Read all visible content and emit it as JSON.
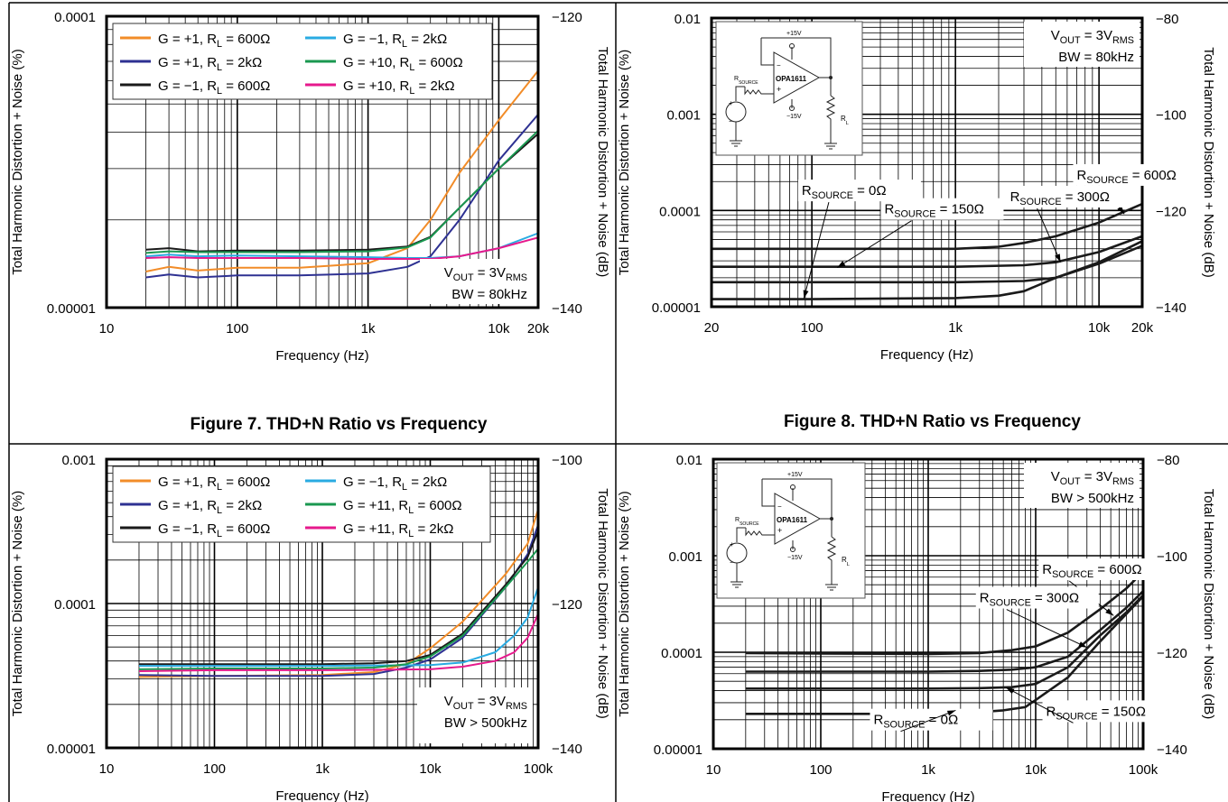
{
  "captions": {
    "fig7": "Figure 7. THD+N Ratio vs Frequency",
    "fig8": "Figure 8. THD+N Ratio vs Frequency"
  },
  "chart_data": [
    {
      "id": "fig7-80k",
      "type": "line",
      "xscale": "log",
      "yscale": "log",
      "xlabel": "Frequency (Hz)",
      "ylabel": "Total Harmonic Distortion + Noise (%)",
      "y2label": "Total Harmonic Distortion + Noise (dB)",
      "xlim": [
        10,
        20000
      ],
      "ylim": [
        1e-05,
        0.0001
      ],
      "y2lim": [
        -140,
        -120
      ],
      "xticks": [
        {
          "v": 10,
          "l": "10"
        },
        {
          "v": 100,
          "l": "100"
        },
        {
          "v": 1000,
          "l": "1k"
        },
        {
          "v": 10000,
          "l": "10k"
        },
        {
          "v": 20000,
          "l": "20k"
        }
      ],
      "yticks": [
        {
          "v": 1e-05,
          "l": "0.00001"
        },
        {
          "v": 0.0001,
          "l": "0.0001"
        }
      ],
      "y2ticks": [
        {
          "v": 1e-05,
          "l": "−140"
        },
        {
          "v": 0.0001,
          "l": "−120"
        }
      ],
      "legend": "top-left",
      "annotation": [
        "V|OUT| = 3V|RMS",
        "BW = 80kHz"
      ],
      "series": [
        {
          "name": "G = +1, R|L| = 600Ω",
          "color": "#f28c28",
          "x": [
            20,
            30,
            50,
            100,
            300,
            1000,
            2000,
            3000,
            5000,
            10000,
            20000
          ],
          "y": [
            1.33e-05,
            1.38e-05,
            1.34e-05,
            1.37e-05,
            1.37e-05,
            1.42e-05,
            1.6e-05,
            2e-05,
            2.9e-05,
            4.4e-05,
            6.5e-05
          ]
        },
        {
          "name": "G = +1, R|L| = 2kΩ",
          "color": "#2e3192",
          "x": [
            20,
            30,
            50,
            100,
            300,
            1000,
            2000,
            3000,
            5000,
            10000,
            20000
          ],
          "y": [
            1.27e-05,
            1.3e-05,
            1.27e-05,
            1.29e-05,
            1.29e-05,
            1.31e-05,
            1.38e-05,
            1.5e-05,
            2e-05,
            3.2e-05,
            4.6e-05
          ]
        },
        {
          "name": "G = −1, R|L| = 600Ω",
          "color": "#1a1a1a",
          "x": [
            20,
            30,
            50,
            100,
            300,
            1000,
            2000,
            3000,
            5000,
            10000,
            20000
          ],
          "y": [
            1.58e-05,
            1.6e-05,
            1.56e-05,
            1.57e-05,
            1.57e-05,
            1.58e-05,
            1.62e-05,
            1.75e-05,
            2.2e-05,
            3e-05,
            3.95e-05
          ]
        },
        {
          "name": "G = −1, R|L| = 2kΩ",
          "color": "#29abe2",
          "x": [
            20,
            30,
            50,
            100,
            300,
            1000,
            2000,
            3000,
            5000,
            10000,
            20000
          ],
          "y": [
            1.5e-05,
            1.52e-05,
            1.5e-05,
            1.51e-05,
            1.5e-05,
            1.49e-05,
            1.48e-05,
            1.48e-05,
            1.5e-05,
            1.6e-05,
            1.8e-05
          ]
        },
        {
          "name": "G = +10, R|L| = 600Ω",
          "color": "#1a9850",
          "x": [
            20,
            30,
            50,
            100,
            300,
            1000,
            2000,
            3000,
            5000,
            10000,
            20000
          ],
          "y": [
            1.54e-05,
            1.56e-05,
            1.55e-05,
            1.55e-05,
            1.55e-05,
            1.56e-05,
            1.61e-05,
            1.74e-05,
            2.2e-05,
            3e-05,
            4.05e-05
          ]
        },
        {
          "name": "G = +10, R|L| = 2kΩ",
          "color": "#e6198c",
          "x": [
            20,
            30,
            50,
            100,
            300,
            1000,
            2000,
            3000,
            5000,
            10000,
            20000
          ],
          "y": [
            1.48e-05,
            1.49e-05,
            1.48e-05,
            1.48e-05,
            1.48e-05,
            1.47e-05,
            1.47e-05,
            1.47e-05,
            1.5e-05,
            1.6e-05,
            1.74e-05
          ]
        }
      ]
    },
    {
      "id": "fig8-80k",
      "type": "line",
      "xscale": "log",
      "yscale": "log",
      "xlabel": "Frequency (Hz)",
      "ylabel": "Total Harmonic Distortion + Noise (%)",
      "y2label": "Total Harmonic Distortion + Noise (dB)",
      "xlim": [
        20,
        20000
      ],
      "ylim": [
        1e-05,
        0.01
      ],
      "y2lim": [
        -140,
        -80
      ],
      "xticks": [
        {
          "v": 20,
          "l": "20"
        },
        {
          "v": 100,
          "l": "100"
        },
        {
          "v": 1000,
          "l": "1k"
        },
        {
          "v": 10000,
          "l": "10k"
        },
        {
          "v": 20000,
          "l": "20k"
        }
      ],
      "yticks": [
        {
          "v": 1e-05,
          "l": "0.00001"
        },
        {
          "v": 0.0001,
          "l": "0.0001"
        },
        {
          "v": 0.001,
          "l": "0.001"
        },
        {
          "v": 0.01,
          "l": "0.01"
        }
      ],
      "y2ticks": [
        {
          "v": 1e-05,
          "l": "−140"
        },
        {
          "v": 0.0001,
          "l": "−120"
        },
        {
          "v": 0.001,
          "l": "−100"
        },
        {
          "v": 0.01,
          "l": "−80"
        }
      ],
      "annotation": [
        "V|OUT| = 3V|RMS",
        "BW = 80kHz"
      ],
      "series": [
        {
          "name": "R|SOURCE| = 600Ω",
          "color": "#1a1a1a",
          "x": [
            20,
            100,
            1000,
            2000,
            3000,
            5000,
            10000,
            20000
          ],
          "y": [
            4e-05,
            4e-05,
            4e-05,
            4.2e-05,
            4.6e-05,
            5.4e-05,
            7.5e-05,
            0.000117
          ]
        },
        {
          "name": "R|SOURCE| = 300Ω",
          "color": "#1a1a1a",
          "x": [
            20,
            100,
            1000,
            3000,
            5000,
            10000,
            20000
          ],
          "y": [
            2.6e-05,
            2.6e-05,
            2.6e-05,
            2.7e-05,
            2.9e-05,
            3.7e-05,
            5.4e-05
          ]
        },
        {
          "name": "R|SOURCE| = 150Ω",
          "color": "#1a1a1a",
          "x": [
            20,
            100,
            1000,
            3000,
            5000,
            10000,
            20000
          ],
          "y": [
            1.8e-05,
            1.8e-05,
            1.8e-05,
            1.85e-05,
            2e-05,
            2.9e-05,
            4.8e-05
          ]
        },
        {
          "name": "R|SOURCE| = 0Ω",
          "color": "#1a1a1a",
          "x": [
            20,
            100,
            1000,
            2000,
            3000,
            5000,
            10000,
            20000
          ],
          "y": [
            1.2e-05,
            1.2e-05,
            1.23e-05,
            1.3e-05,
            1.45e-05,
            2e-05,
            2.8e-05,
            4.3e-05
          ]
        }
      ],
      "labels": [
        {
          "text": "R|SOURCE| = 600Ω",
          "x": 7000,
          "y": 0.00021,
          "arrow": [
            15000,
            9.2e-05
          ]
        },
        {
          "text": "R|SOURCE| = 300Ω",
          "x": 2400,
          "y": 0.000125,
          "arrow": [
            5400,
            2.9e-05
          ]
        },
        {
          "text": "R|SOURCE| = 150Ω",
          "x": 320,
          "y": 9.3e-05,
          "arrow": [
            150,
            2.55e-05
          ]
        },
        {
          "text": "R|SOURCE| = 0Ω",
          "x": 85,
          "y": 0.000145,
          "arrow": [
            88,
            1.22e-05
          ]
        }
      ],
      "inset": {
        "opamp": "OPA1611",
        "vplus": "+15V",
        "vminus": "−15V",
        "rsource": "R|SOURCE",
        "rl": "R|L"
      }
    },
    {
      "id": "fig7-500k",
      "type": "line",
      "xscale": "log",
      "yscale": "log",
      "xlabel": "Frequency (Hz)",
      "ylabel": "Total Harmonic Distortion + Noise (%)",
      "y2label": "Total Harmonic Distortion + Noise (dB)",
      "xlim": [
        10,
        100000
      ],
      "ylim": [
        1e-05,
        0.001
      ],
      "y2lim": [
        -140,
        -100
      ],
      "xticks": [
        {
          "v": 10,
          "l": "10"
        },
        {
          "v": 100,
          "l": "100"
        },
        {
          "v": 1000,
          "l": "1k"
        },
        {
          "v": 10000,
          "l": "10k"
        },
        {
          "v": 100000,
          "l": "100k"
        }
      ],
      "yticks": [
        {
          "v": 1e-05,
          "l": "0.00001"
        },
        {
          "v": 0.0001,
          "l": "0.0001"
        },
        {
          "v": 0.001,
          "l": "0.001"
        }
      ],
      "y2ticks": [
        {
          "v": 1e-05,
          "l": "−140"
        },
        {
          "v": 0.0001,
          "l": "−120"
        },
        {
          "v": 0.001,
          "l": "−100"
        }
      ],
      "legend": "top-left",
      "annotation": [
        "V|OUT| = 3V|RMS",
        "BW > 500kHz"
      ],
      "series": [
        {
          "name": "G = +1, R|L| = 600Ω",
          "color": "#f28c28",
          "x": [
            20,
            100,
            1000,
            3000,
            6000,
            10000,
            20000,
            50000,
            80000,
            100000
          ],
          "y": [
            3.1e-05,
            3.15e-05,
            3.2e-05,
            3.35e-05,
            3.8e-05,
            4.9e-05,
            7.5e-05,
            0.00016,
            0.00026,
            0.00045
          ]
        },
        {
          "name": "G = +1, R|L| = 2kΩ",
          "color": "#2e3192",
          "x": [
            20,
            100,
            1000,
            3000,
            6000,
            10000,
            20000,
            50000,
            80000,
            100000
          ],
          "y": [
            3.2e-05,
            3.15e-05,
            3.15e-05,
            3.25e-05,
            3.6e-05,
            4.1e-05,
            5.8e-05,
            0.00013,
            0.00022,
            0.00035
          ]
        },
        {
          "name": "G = −1, R|L| = 600Ω",
          "color": "#1a1a1a",
          "x": [
            20,
            100,
            1000,
            3000,
            6000,
            10000,
            20000,
            50000,
            80000,
            100000
          ],
          "y": [
            3.8e-05,
            3.8e-05,
            3.8e-05,
            3.85e-05,
            4e-05,
            4.4e-05,
            6.2e-05,
            0.000135,
            0.00021,
            0.00032
          ]
        },
        {
          "name": "G = −1, R|L| = 2kΩ",
          "color": "#29abe2",
          "x": [
            20,
            100,
            1000,
            10000,
            20000,
            40000,
            60000,
            80000,
            100000
          ],
          "y": [
            3.7e-05,
            3.7e-05,
            3.7e-05,
            3.75e-05,
            3.9e-05,
            4.6e-05,
            6e-05,
            8e-05,
            0.00013
          ]
        },
        {
          "name": "G = +11, R|L| = 600Ω",
          "color": "#1a9850",
          "x": [
            20,
            100,
            1000,
            3000,
            6000,
            10000,
            20000,
            50000,
            80000,
            100000
          ],
          "y": [
            3.5e-05,
            3.55e-05,
            3.55e-05,
            3.6e-05,
            3.8e-05,
            4.3e-05,
            6e-05,
            0.00013,
            0.000195,
            0.00024
          ]
        },
        {
          "name": "G = +11, R|L| = 2kΩ",
          "color": "#e6198c",
          "x": [
            20,
            100,
            1000,
            10000,
            20000,
            40000,
            60000,
            80000,
            100000
          ],
          "y": [
            3.4e-05,
            3.45e-05,
            3.45e-05,
            3.5e-05,
            3.65e-05,
            4e-05,
            4.6e-05,
            5.8e-05,
            8.5e-05
          ]
        }
      ]
    },
    {
      "id": "fig8-500k",
      "type": "line",
      "xscale": "log",
      "yscale": "log",
      "xlabel": "Frequency (Hz)",
      "ylabel": "Total Harmonic Distortion + Noise (%)",
      "y2label": "Total Harmonic Distortion + Noise (dB)",
      "xlim": [
        10,
        100000
      ],
      "ylim": [
        1e-05,
        0.01
      ],
      "y2lim": [
        -140,
        -80
      ],
      "xticks": [
        {
          "v": 10,
          "l": "10"
        },
        {
          "v": 100,
          "l": "100"
        },
        {
          "v": 1000,
          "l": "1k"
        },
        {
          "v": 10000,
          "l": "10k"
        },
        {
          "v": 100000,
          "l": "100k"
        }
      ],
      "yticks": [
        {
          "v": 1e-05,
          "l": "0.00001"
        },
        {
          "v": 0.0001,
          "l": "0.0001"
        },
        {
          "v": 0.001,
          "l": "0.001"
        },
        {
          "v": 0.01,
          "l": "0.01"
        }
      ],
      "y2ticks": [
        {
          "v": 1e-05,
          "l": "−140"
        },
        {
          "v": 0.0001,
          "l": "−120"
        },
        {
          "v": 0.001,
          "l": "−100"
        },
        {
          "v": 0.01,
          "l": "−80"
        }
      ],
      "annotation": [
        "V|OUT| = 3V|RMS",
        "BW > 500kHz"
      ],
      "series": [
        {
          "name": "R|SOURCE| = 600Ω",
          "color": "#1a1a1a",
          "x": [
            20,
            100,
            1000,
            3000,
            6000,
            10000,
            20000,
            40000,
            70000,
            100000
          ],
          "y": [
            9.8e-05,
            9.7e-05,
            9.6e-05,
            9.8e-05,
            0.000105,
            0.000115,
            0.00016,
            0.00028,
            0.00046,
            0.00068
          ]
        },
        {
          "name": "R|SOURCE| = 300Ω",
          "color": "#1a1a1a",
          "x": [
            20,
            100,
            1000,
            3000,
            6000,
            10000,
            20000,
            40000,
            70000,
            100000
          ],
          "y": [
            6.3e-05,
            6.3e-05,
            6.3e-05,
            6.4e-05,
            6.6e-05,
            7e-05,
            9e-05,
            0.00017,
            0.00029,
            0.00043
          ]
        },
        {
          "name": "R|SOURCE| = 150Ω",
          "color": "#1a1a1a",
          "x": [
            20,
            100,
            1000,
            3000,
            6000,
            10000,
            20000,
            40000,
            70000,
            100000
          ],
          "y": [
            4.2e-05,
            4.2e-05,
            4.2e-05,
            4.25e-05,
            4.35e-05,
            4.7e-05,
            7e-05,
            0.00015,
            0.00026,
            0.00039
          ]
        },
        {
          "name": "R|SOURCE| = 0Ω",
          "color": "#1a1a1a",
          "x": [
            20,
            100,
            1000,
            3000,
            5000,
            8000,
            10000,
            20000,
            40000,
            70000,
            100000
          ],
          "y": [
            2.3e-05,
            2.3e-05,
            2.3e-05,
            2.4e-05,
            2.5e-05,
            2.7e-05,
            3.2e-05,
            5.5e-05,
            0.00013,
            0.00025,
            0.00038
          ]
        }
      ],
      "labels": [
        {
          "text": "R|SOURCE| = 600Ω",
          "x": 11500,
          "y": 0.00065,
          "arrow": [
            53000,
            0.00024
          ]
        },
        {
          "text": "R|SOURCE| = 300Ω",
          "x": 3000,
          "y": 0.00033,
          "arrow": [
            30000,
            0.000112
          ]
        },
        {
          "text": "R|SOURCE| = 150Ω",
          "x": 12500,
          "y": 2.2e-05,
          "arrow": [
            5300,
            4.3e-05
          ]
        },
        {
          "text": "R|SOURCE| = 0Ω",
          "x": 310,
          "y": 1.8e-05,
          "arrow": [
            1800,
            2.5e-05
          ]
        }
      ],
      "inset": {
        "opamp": "OPA1611",
        "vplus": "+15V",
        "vminus": "−15V",
        "rsource": "R|SOURCE",
        "rl": "R|L"
      }
    }
  ]
}
